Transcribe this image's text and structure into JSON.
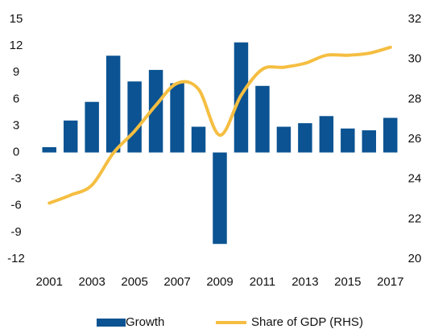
{
  "chart_data": {
    "type": "bar_line",
    "categories": [
      "2001",
      null,
      "2003",
      null,
      "2005",
      null,
      "2007",
      null,
      "2009",
      null,
      "2011",
      null,
      "2013",
      null,
      "2015",
      null,
      "2017"
    ],
    "series": [
      {
        "name": "Growth",
        "color": "#0b5392",
        "type": "bar",
        "values": [
          0.6,
          3.6,
          5.7,
          10.9,
          8.0,
          9.3,
          7.8,
          2.9,
          -10.3,
          12.4,
          7.5,
          2.9,
          3.3,
          4.1,
          2.7,
          2.5,
          3.9
        ]
      },
      {
        "name": "Share of GDP (RHS)",
        "color": "#f5be41",
        "type": "line",
        "axis": "y2",
        "values": [
          22.8,
          23.2,
          23.7,
          25.3,
          26.4,
          27.7,
          28.8,
          28.5,
          26.2,
          28.2,
          29.5,
          29.6,
          29.8,
          30.2,
          30.2,
          30.3,
          30.6
        ]
      }
    ],
    "ylim": [
      -12,
      15
    ],
    "yticks": [
      -12,
      -9,
      -6,
      -3,
      0,
      3,
      6,
      9,
      12,
      15
    ],
    "y2lim": [
      20,
      32
    ],
    "y2ticks": [
      20,
      22,
      24,
      26,
      28,
      30,
      32
    ],
    "legend": "bottom"
  }
}
